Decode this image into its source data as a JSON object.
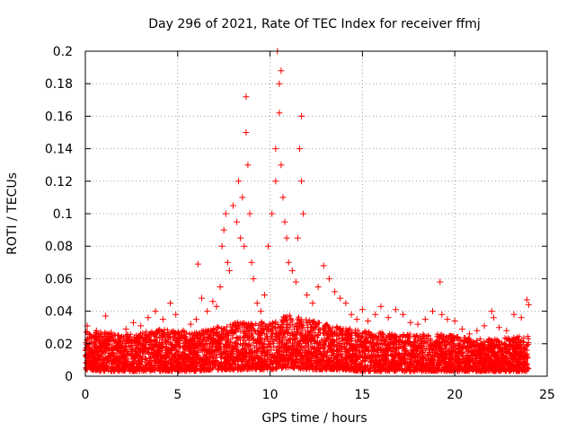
{
  "chart_data": {
    "type": "scatter",
    "title": "Day 296 of 2021, Rate Of TEC Index for receiver ffmj",
    "xlabel": "GPS time / hours",
    "ylabel": "ROTI / TECUs",
    "xlim": [
      0,
      25
    ],
    "ylim": [
      0,
      0.2
    ],
    "x_ticks": [
      0,
      5,
      10,
      15,
      20,
      25
    ],
    "x_tick_labels": [
      "0",
      "5",
      "10",
      "15",
      "20",
      "25"
    ],
    "y_ticks": [
      0,
      0.02,
      0.04,
      0.06,
      0.08,
      0.1,
      0.12,
      0.14,
      0.16,
      0.18,
      0.2
    ],
    "y_tick_labels": [
      "0",
      "0.02",
      "0.04",
      "0.06",
      "0.08",
      "0.1",
      "0.12",
      "0.14",
      "0.16",
      "0.18",
      "0.2"
    ],
    "grid": true,
    "marker": "+",
    "color": "#ff0000",
    "series": [
      {
        "name": "ROTI",
        "x": [
          0.1,
          0.3,
          0.6,
          0.9,
          1.1,
          1.4,
          1.8,
          2.2,
          2.6,
          3.0,
          3.4,
          3.8,
          4.2,
          4.6,
          4.9,
          5.3,
          5.7,
          6.0,
          6.1,
          6.3,
          6.6,
          6.9,
          7.1,
          7.3,
          7.4,
          7.5,
          7.6,
          7.7,
          7.8,
          8.0,
          8.2,
          8.3,
          8.4,
          8.5,
          8.6,
          8.7,
          8.7,
          8.8,
          8.9,
          9.0,
          9.1,
          9.3,
          9.5,
          9.7,
          9.9,
          10.1,
          10.3,
          10.3,
          10.4,
          10.5,
          10.5,
          10.6,
          10.6,
          10.7,
          10.8,
          10.9,
          11.0,
          11.2,
          11.4,
          11.5,
          11.6,
          11.7,
          11.7,
          11.8,
          12.0,
          12.3,
          12.6,
          12.9,
          13.2,
          13.5,
          13.8,
          14.1,
          14.4,
          14.7,
          15.0,
          15.3,
          15.7,
          16.0,
          16.4,
          16.8,
          17.2,
          17.6,
          18.0,
          18.4,
          18.8,
          19.2,
          19.3,
          19.6,
          20.0,
          20.4,
          20.8,
          21.2,
          21.6,
          22.0,
          22.1,
          22.4,
          22.8,
          23.2,
          23.6,
          23.9,
          24.0
        ],
        "y": [
          0.031,
          0.024,
          0.028,
          0.022,
          0.037,
          0.027,
          0.025,
          0.029,
          0.033,
          0.031,
          0.036,
          0.04,
          0.035,
          0.045,
          0.038,
          0.028,
          0.032,
          0.035,
          0.069,
          0.048,
          0.04,
          0.046,
          0.043,
          0.055,
          0.08,
          0.09,
          0.1,
          0.07,
          0.065,
          0.105,
          0.095,
          0.12,
          0.085,
          0.11,
          0.08,
          0.15,
          0.172,
          0.13,
          0.1,
          0.07,
          0.06,
          0.045,
          0.04,
          0.05,
          0.08,
          0.1,
          0.14,
          0.12,
          0.2,
          0.18,
          0.162,
          0.188,
          0.13,
          0.11,
          0.095,
          0.085,
          0.07,
          0.065,
          0.058,
          0.085,
          0.14,
          0.16,
          0.12,
          0.1,
          0.05,
          0.045,
          0.055,
          0.068,
          0.06,
          0.052,
          0.048,
          0.045,
          0.038,
          0.035,
          0.041,
          0.034,
          0.038,
          0.043,
          0.036,
          0.041,
          0.038,
          0.033,
          0.032,
          0.035,
          0.04,
          0.058,
          0.038,
          0.035,
          0.034,
          0.029,
          0.026,
          0.028,
          0.031,
          0.04,
          0.036,
          0.03,
          0.028,
          0.038,
          0.036,
          0.047,
          0.044
        ]
      }
    ],
    "band": {
      "description_values_in_data_units": true,
      "x": [
        0,
        1,
        2,
        3,
        4,
        5,
        6,
        7,
        8,
        9,
        10,
        11,
        12,
        13,
        14,
        15,
        16,
        17,
        18,
        19,
        20,
        21,
        22,
        23,
        24
      ],
      "low": [
        0.004,
        0.003,
        0.003,
        0.003,
        0.003,
        0.003,
        0.003,
        0.004,
        0.004,
        0.004,
        0.004,
        0.005,
        0.004,
        0.004,
        0.004,
        0.003,
        0.003,
        0.003,
        0.003,
        0.003,
        0.003,
        0.003,
        0.003,
        0.003,
        0.003
      ],
      "high": [
        0.028,
        0.027,
        0.026,
        0.027,
        0.029,
        0.028,
        0.027,
        0.03,
        0.033,
        0.034,
        0.033,
        0.038,
        0.035,
        0.032,
        0.03,
        0.028,
        0.027,
        0.026,
        0.026,
        0.026,
        0.025,
        0.023,
        0.023,
        0.024,
        0.025
      ]
    }
  }
}
